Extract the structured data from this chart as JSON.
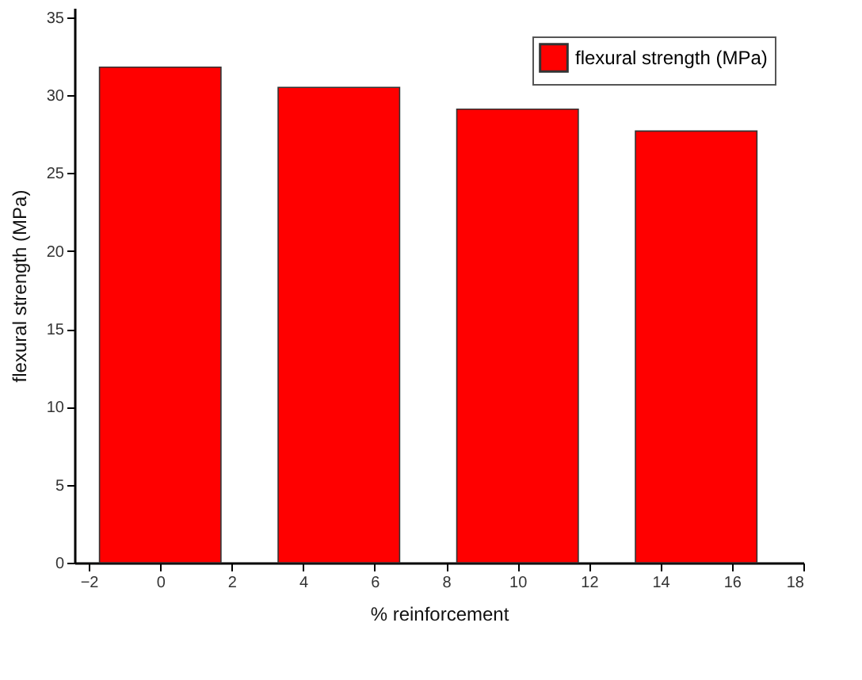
{
  "chart_data": {
    "type": "bar",
    "xlabel": "% reinforcement",
    "ylabel": "flexural strength (MPa)",
    "x": [
      0,
      5,
      10,
      15
    ],
    "series": [
      {
        "name": "flexural strength (MPa)",
        "color": "#ff0000",
        "values": [
          31.8,
          30.5,
          29.1,
          27.7
        ]
      }
    ],
    "xlim": [
      -2.4,
      18
    ],
    "xticks": [
      -2,
      0,
      2,
      4,
      6,
      8,
      10,
      12,
      14,
      16,
      18
    ],
    "ylim": [
      0,
      35.6
    ],
    "yticks": [
      0,
      5,
      10,
      15,
      20,
      25,
      30,
      35
    ],
    "grid": false,
    "legend": "top right"
  }
}
